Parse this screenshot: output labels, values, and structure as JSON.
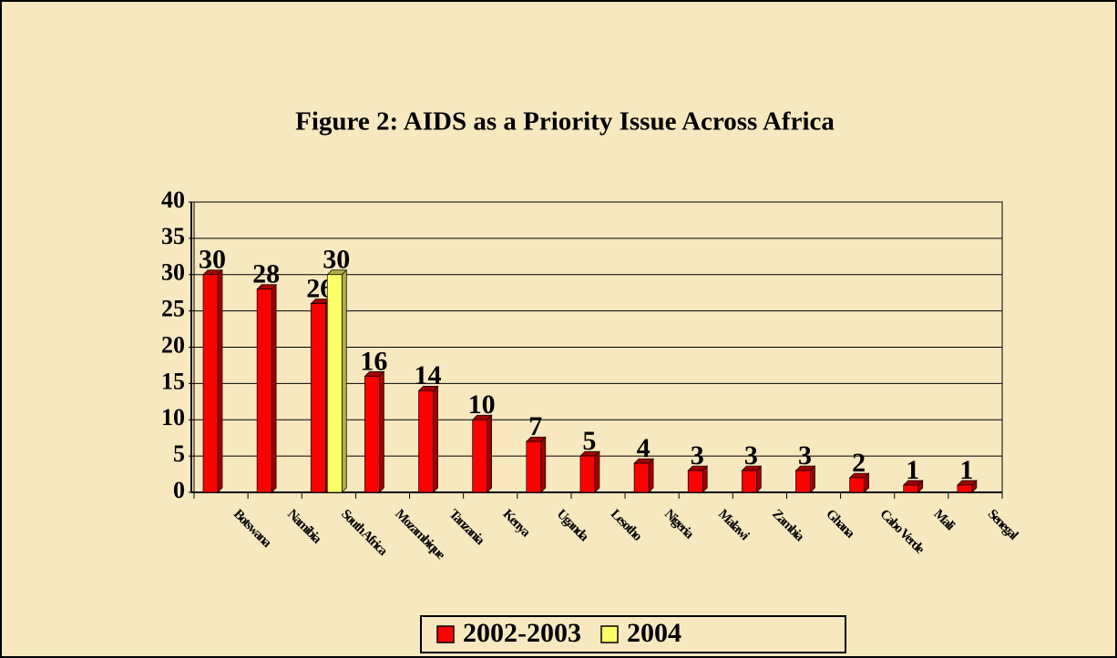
{
  "chart_data": {
    "type": "bar",
    "title": "Figure 2: AIDS as a Priority Issue Across Africa",
    "categories": [
      "Botswana",
      "Namibia",
      "South Africa",
      "Mozambique",
      "Tanzania",
      "Kenya",
      "Uganda",
      "Lesotho",
      "Nigeria",
      "Malawi",
      "Zambia",
      "Ghana",
      "Cabo Verde",
      "Mali",
      "Senegal"
    ],
    "series": [
      {
        "name": "2002-2003",
        "color": "#ff0000",
        "values": [
          30,
          28,
          26,
          16,
          14,
          10,
          7,
          5,
          4,
          3,
          3,
          3,
          2,
          1,
          1
        ]
      },
      {
        "name": "2004",
        "color": "#ffff66",
        "values": [
          null,
          null,
          30,
          null,
          null,
          null,
          null,
          null,
          null,
          null,
          null,
          null,
          null,
          null,
          null
        ]
      }
    ],
    "ylim": [
      0,
      40
    ],
    "yticks": [
      0,
      5,
      10,
      15,
      20,
      25,
      30,
      35,
      40
    ],
    "grid": true,
    "legend": "bottom"
  }
}
